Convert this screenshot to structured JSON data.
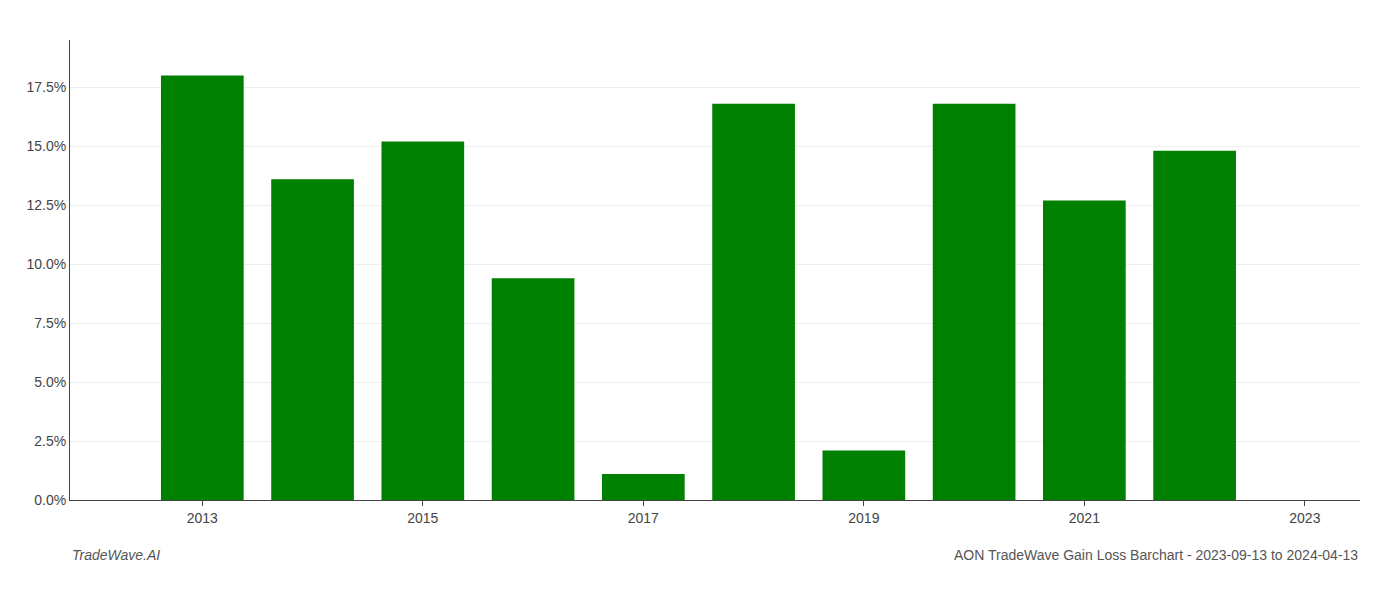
{
  "chart_data": {
    "type": "bar",
    "x": [
      2013,
      2014,
      2015,
      2016,
      2017,
      2018,
      2019,
      2020,
      2021,
      2022
    ],
    "values": [
      0.18,
      0.136,
      0.152,
      0.094,
      0.011,
      0.168,
      0.021,
      0.168,
      0.127,
      0.148
    ],
    "color": "#008000",
    "xlim": [
      2011.8,
      2023.5
    ],
    "xticks": [
      2013,
      2015,
      2017,
      2019,
      2021,
      2023
    ],
    "ylim": [
      0.0,
      0.195
    ],
    "yticks": [
      {
        "value": 0.0,
        "label": "0.0%"
      },
      {
        "value": 0.025,
        "label": "2.5%"
      },
      {
        "value": 0.05,
        "label": "5.0%"
      },
      {
        "value": 0.075,
        "label": "7.5%"
      },
      {
        "value": 0.1,
        "label": "10.0%"
      },
      {
        "value": 0.125,
        "label": "12.5%"
      },
      {
        "value": 0.15,
        "label": "15.0%"
      },
      {
        "value": 0.175,
        "label": "17.5%"
      }
    ],
    "grid": true,
    "annotations": [
      "TradeWave.AI",
      "AON TradeWave Gain Loss Barchart - 2023-09-13 to 2024-04-13"
    ]
  }
}
